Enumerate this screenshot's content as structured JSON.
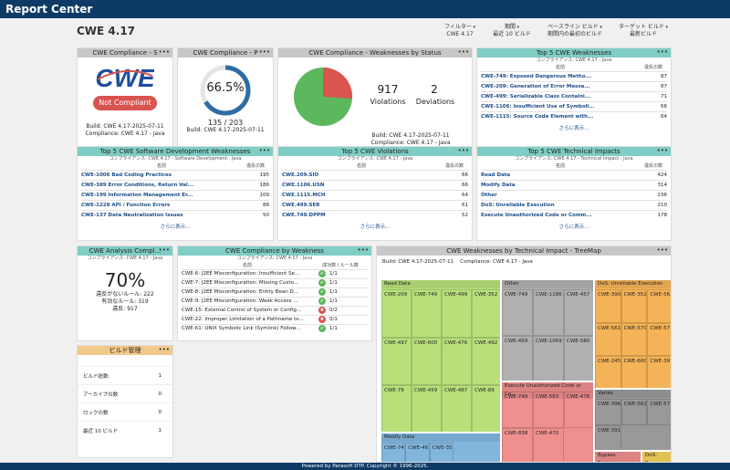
{
  "app": {
    "title": "Report Center",
    "footer": "Powered by Parasoft DTP. Copyright © 1996-2025."
  },
  "page_title": "CWE 4.17",
  "filters": [
    {
      "label": "フィルター",
      "value": "CWE 4.17"
    },
    {
      "label": "期間",
      "value": "最近 10 ビルド"
    },
    {
      "label": "ベースライン ビルド",
      "value": "期間内の最初のビルド"
    },
    {
      "label": "ターゲット ビルド",
      "value": "最新ビルド"
    }
  ],
  "compliance_s": {
    "title": "CWE Compliance - S",
    "logo": "CWE",
    "status": "Not Compliant",
    "build": "Build: CWE 4.17-2025-07-11",
    "compliance": "Compliance: CWE 4.17 - Java"
  },
  "compliance_p": {
    "title": "CWE Compliance - P",
    "percent": "66.5%",
    "fraction": "135 / 203",
    "percent_value": 66.5,
    "build": "Build: CWE 4.17-2025-07-11"
  },
  "compliance_ws": {
    "title": "CWE Compliance - Weaknesses by Status",
    "violations": "917",
    "violations_label": "Violations",
    "deviations": "2",
    "deviations_label": "Deviations",
    "build": "Build: CWE 4.17-2025-07-11",
    "compliance": "Compliance: CWE 4.17 - Java"
  },
  "top5_weak": {
    "title": "Top 5 CWE Weaknesses",
    "sub": "コンプライアンス: CWE 4.17 - Java",
    "col1": "名前",
    "col2": "違反の数",
    "more": "さらに表示...",
    "rows": [
      {
        "name": "CWE-749: Exposed Dangerous Metho...",
        "count": "87"
      },
      {
        "name": "CWE-209: Generation of Error Messa...",
        "count": "87"
      },
      {
        "name": "CWE-499: Serializable Class Containi...",
        "count": "71"
      },
      {
        "name": "CWE-1106: Insufficient Use of Symboli...",
        "count": "66"
      },
      {
        "name": "CWE-1115: Source Code Element with...",
        "count": "64"
      }
    ]
  },
  "top5_sdw": {
    "title": "Top 5 CWE Software Development Weaknesses",
    "sub": "コンプライアンス: CWE 4.17 - Software Development - Java",
    "col1": "名前",
    "col2": "違反の数",
    "more": "さらに表示...",
    "rows": [
      {
        "name": "CWE-1006 Bad Coding Practices",
        "count": "195"
      },
      {
        "name": "CWE-389 Error Conditions, Return Val...",
        "count": "186"
      },
      {
        "name": "CWE-199 Information Management Er...",
        "count": "109"
      },
      {
        "name": "CWE-1228 API / Function Errors",
        "count": "88"
      },
      {
        "name": "CWE-137 Data Neutralization Issues",
        "count": "50"
      }
    ]
  },
  "top5_viol": {
    "title": "Top 5 CWE Violations",
    "sub": "コンプライアンス: CWE 4.17 - Java",
    "col1": "名前",
    "col2": "違反の数",
    "more": "さらに表示...",
    "rows": [
      {
        "name": "CWE.209.SIO",
        "count": "66"
      },
      {
        "name": "CWE.1106.USN",
        "count": "66"
      },
      {
        "name": "CWE.1115.MCH",
        "count": "64"
      },
      {
        "name": "CWE.499.SER",
        "count": "61"
      },
      {
        "name": "CWE.749.DPPM",
        "count": "52"
      }
    ]
  },
  "top5_tech": {
    "title": "Top 5 CWE Technical Impacts",
    "sub": "コンプライアンス: CWE 4.17 - Technical Impact - Java",
    "col1": "名前",
    "col2": "違反の数",
    "more": "さらに表示...",
    "rows": [
      {
        "name": "Read Data",
        "count": "424"
      },
      {
        "name": "Modify Data",
        "count": "314"
      },
      {
        "name": "Other",
        "count": "236"
      },
      {
        "name": "DoS: Unreliable Execution",
        "count": "210"
      },
      {
        "name": "Execute Unauthorized Code or Comm...",
        "count": "178"
      }
    ]
  },
  "analysis": {
    "title": "CWE Analysis Compl...",
    "sub": "コンプライアンス: CWE 4.17 - Java",
    "percent": "70%",
    "line1": "違反がないルール: 222",
    "line2": "有効なルール: 319",
    "line3": "違反: 917"
  },
  "by_weak": {
    "title": "CWE Compliance by Weakness",
    "sub": "コンプライアンス: CWE 4.17 - Java",
    "col1": "名前",
    "col2": "成功数 / ルール数",
    "rows": [
      {
        "name": "CWE-6: J2EE Misconfiguration: Insufficient Se...",
        "val": "1/1",
        "ok": true
      },
      {
        "name": "CWE-7: J2EE Misconfiguration: Missing Custo...",
        "val": "1/1",
        "ok": true
      },
      {
        "name": "CWE-8: J2EE Misconfiguration: Entity Bean D...",
        "val": "1/1",
        "ok": true
      },
      {
        "name": "CWE-9: J2EE Misconfiguration: Weak Access ...",
        "val": "1/1",
        "ok": true
      },
      {
        "name": "CWE-15: External Control of System or Config...",
        "val": "0/2",
        "ok": false
      },
      {
        "name": "CWE-22: Improper Limitation of a Pathname to...",
        "val": "0/1",
        "ok": false
      },
      {
        "name": "CWE-61: UNIX Symbolic Link (Symlink) Follow...",
        "val": "1/1",
        "ok": true
      }
    ]
  },
  "build_mgmt": {
    "title": "ビルド管理",
    "rows": [
      {
        "label": "ビルド総数:",
        "value": "1"
      },
      {
        "label": "アーカイブの数",
        "value": "0"
      },
      {
        "label": "ロックの数",
        "value": "0"
      },
      {
        "label": "最近 10 ビルド",
        "value": "1"
      }
    ]
  },
  "treemap": {
    "title": "CWE Weaknesses by Technical Impact - TreeMap",
    "build": "Build: CWE 4.17-2025-07-11",
    "compliance": "Compliance: CWE 4.17 - Java",
    "groups": [
      {
        "name": "Read Data",
        "color": "#b7e07a",
        "cells": [
          "CWE-209",
          "CWE-749",
          "CWE-499",
          "CWE-352",
          "CWE-497",
          "CWE-600",
          "CWE-476",
          "CWE-492",
          "CWE-79",
          "CWE-459",
          "CWE-487",
          "CWE-89"
        ]
      },
      {
        "name": "Modify Data",
        "color": "#82b6dd",
        "cells": [
          "CWE-749",
          "CWE-483",
          "CWE-352"
        ]
      },
      {
        "name": "Other",
        "color": "#b0b0b0",
        "cells": [
          "CWE-749",
          "CWE-1186",
          "CWE-457",
          "CWE-459",
          "CWE-1069",
          "CWE-580"
        ]
      },
      {
        "name": "Execute Unauthorized Code or Co...",
        "color": "#f08f8f",
        "cells": [
          "CWE-749",
          "CWE-583",
          "CWE-476",
          "CWE-838",
          "CWE-470"
        ]
      },
      {
        "name": "DoS: Unreliable Execution",
        "color": "#f5b357",
        "cells": [
          "CWE-390",
          "CWE-352",
          "CWE-563",
          "CWE-561",
          "CWE-570",
          "CWE-571",
          "CWE-245",
          "CWE-600",
          "CWE-391"
        ]
      },
      {
        "name": "Varies",
        "color": "#999999",
        "cells": [
          "CWE-396",
          "CWE-563",
          "CWE-571",
          "CWE-391"
        ]
      },
      {
        "name": "Bypass Protection",
        "color": "#f08f8f",
        "cells": []
      },
      {
        "name": "DoS: Resour...",
        "color": "#f5d35a",
        "cells": []
      }
    ]
  },
  "colors": {
    "accent": "#0d3b66",
    "compliant_red": "#d9534f",
    "green": "#5cb85c",
    "teal": "#7fcdc4"
  }
}
